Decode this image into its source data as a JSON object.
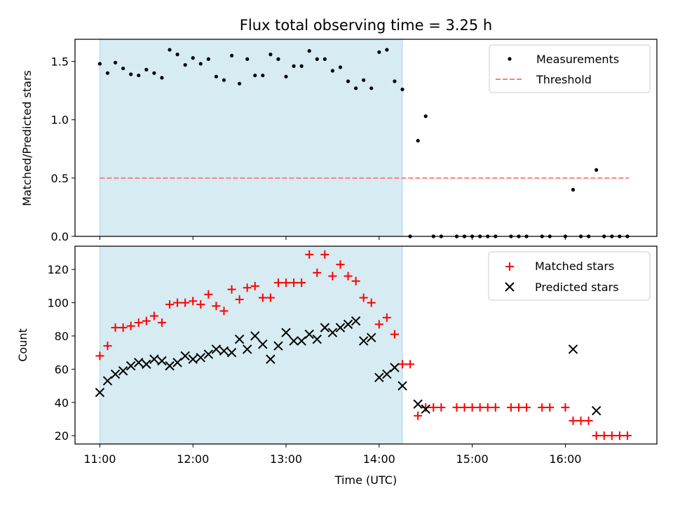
{
  "chart_data": [
    {
      "type": "scatter",
      "title": "Flux total observing time = 3.25 h",
      "ylabel": "Matched/Predicted stars",
      "xlabel": "",
      "xlim": [
        "10:44",
        "16:59"
      ],
      "ylim": [
        0,
        1.69
      ],
      "yticks": [
        "0.0",
        "0.5",
        "1.0",
        "1.5"
      ],
      "shaded_interval": [
        "11:00",
        "14:15"
      ],
      "shaded_color": "#add8e6",
      "legend_position": "upper right",
      "series": [
        {
          "name": "Measurements",
          "marker": "dot",
          "color": "#000000",
          "points": [
            [
              "11:00",
              1.48
            ],
            [
              "11:05",
              1.4
            ],
            [
              "11:10",
              1.49
            ],
            [
              "11:15",
              1.44
            ],
            [
              "11:20",
              1.39
            ],
            [
              "11:25",
              1.38
            ],
            [
              "11:30",
              1.43
            ],
            [
              "11:35",
              1.4
            ],
            [
              "11:40",
              1.36
            ],
            [
              "11:45",
              1.6
            ],
            [
              "11:50",
              1.56
            ],
            [
              "11:55",
              1.47
            ],
            [
              "12:00",
              1.53
            ],
            [
              "12:05",
              1.48
            ],
            [
              "12:10",
              1.52
            ],
            [
              "12:15",
              1.37
            ],
            [
              "12:20",
              1.34
            ],
            [
              "12:25",
              1.55
            ],
            [
              "12:30",
              1.31
            ],
            [
              "12:35",
              1.52
            ],
            [
              "12:40",
              1.38
            ],
            [
              "12:45",
              1.38
            ],
            [
              "12:50",
              1.56
            ],
            [
              "12:55",
              1.52
            ],
            [
              "13:00",
              1.37
            ],
            [
              "13:05",
              1.46
            ],
            [
              "13:10",
              1.46
            ],
            [
              "13:15",
              1.59
            ],
            [
              "13:20",
              1.52
            ],
            [
              "13:25",
              1.52
            ],
            [
              "13:30",
              1.42
            ],
            [
              "13:35",
              1.45
            ],
            [
              "13:40",
              1.33
            ],
            [
              "13:45",
              1.27
            ],
            [
              "13:50",
              1.34
            ],
            [
              "13:55",
              1.27
            ],
            [
              "14:00",
              1.58
            ],
            [
              "14:05",
              1.6
            ],
            [
              "14:10",
              1.33
            ],
            [
              "14:15",
              1.26
            ],
            [
              "14:20",
              0.0
            ],
            [
              "14:25",
              0.82
            ],
            [
              "14:30",
              1.03
            ],
            [
              "14:35",
              0.0
            ],
            [
              "14:40",
              0.0
            ],
            [
              "14:50",
              0.0
            ],
            [
              "14:55",
              0.0
            ],
            [
              "15:00",
              0.0
            ],
            [
              "15:05",
              0.0
            ],
            [
              "15:10",
              0.0
            ],
            [
              "15:15",
              0.0
            ],
            [
              "15:25",
              0.0
            ],
            [
              "15:30",
              0.0
            ],
            [
              "15:35",
              0.0
            ],
            [
              "15:45",
              0.0
            ],
            [
              "15:50",
              0.0
            ],
            [
              "16:00",
              0.0
            ],
            [
              "16:05",
              0.4
            ],
            [
              "16:10",
              0.0
            ],
            [
              "16:15",
              0.0
            ],
            [
              "16:20",
              0.57
            ],
            [
              "16:25",
              0.0
            ],
            [
              "16:30",
              0.0
            ],
            [
              "16:35",
              0.0
            ],
            [
              "16:40",
              0.0
            ]
          ]
        },
        {
          "name": "Threshold",
          "style": "dashed",
          "color": "#ff8080",
          "points": [
            [
              "11:00",
              0.5
            ],
            [
              "16:41",
              0.5
            ]
          ]
        }
      ]
    },
    {
      "type": "scatter",
      "title": "",
      "xlabel": "Time (UTC)",
      "ylabel": "Count",
      "xlim": [
        "10:44",
        "16:59"
      ],
      "ylim": [
        15,
        134
      ],
      "xticks": [
        "11:00",
        "12:00",
        "13:00",
        "14:00",
        "15:00",
        "16:00"
      ],
      "yticks": [
        "20",
        "40",
        "60",
        "80",
        "100",
        "120"
      ],
      "shaded_interval": [
        "11:00",
        "14:15"
      ],
      "shaded_color": "#add8e6",
      "legend_position": "upper right",
      "series": [
        {
          "name": "Matched stars",
          "marker": "plus",
          "color": "#ff0000",
          "points": [
            [
              "11:00",
              68
            ],
            [
              "11:05",
              74
            ],
            [
              "11:10",
              85
            ],
            [
              "11:15",
              85
            ],
            [
              "11:20",
              86
            ],
            [
              "11:25",
              88
            ],
            [
              "11:30",
              89
            ],
            [
              "11:35",
              92
            ],
            [
              "11:40",
              88
            ],
            [
              "11:45",
              99
            ],
            [
              "11:50",
              100
            ],
            [
              "11:55",
              100
            ],
            [
              "12:00",
              101
            ],
            [
              "12:05",
              99
            ],
            [
              "12:10",
              105
            ],
            [
              "12:15",
              98
            ],
            [
              "12:20",
              95
            ],
            [
              "12:25",
              108
            ],
            [
              "12:30",
              102
            ],
            [
              "12:35",
              109
            ],
            [
              "12:40",
              110
            ],
            [
              "12:45",
              103
            ],
            [
              "12:50",
              103
            ],
            [
              "12:55",
              112
            ],
            [
              "13:00",
              112
            ],
            [
              "13:05",
              112
            ],
            [
              "13:10",
              112
            ],
            [
              "13:15",
              129
            ],
            [
              "13:20",
              118
            ],
            [
              "13:25",
              129
            ],
            [
              "13:30",
              116
            ],
            [
              "13:35",
              123
            ],
            [
              "13:40",
              116
            ],
            [
              "13:45",
              113
            ],
            [
              "13:50",
              103
            ],
            [
              "13:55",
              100
            ],
            [
              "14:00",
              87
            ],
            [
              "14:05",
              91
            ],
            [
              "14:10",
              81
            ],
            [
              "14:15",
              63
            ],
            [
              "14:20",
              63
            ],
            [
              "14:25",
              32
            ],
            [
              "14:30",
              37
            ],
            [
              "14:35",
              37
            ],
            [
              "14:40",
              37
            ],
            [
              "14:50",
              37
            ],
            [
              "14:55",
              37
            ],
            [
              "15:00",
              37
            ],
            [
              "15:05",
              37
            ],
            [
              "15:10",
              37
            ],
            [
              "15:15",
              37
            ],
            [
              "15:25",
              37
            ],
            [
              "15:30",
              37
            ],
            [
              "15:35",
              37
            ],
            [
              "15:45",
              37
            ],
            [
              "15:50",
              37
            ],
            [
              "16:00",
              37
            ],
            [
              "16:05",
              29
            ],
            [
              "16:10",
              29
            ],
            [
              "16:15",
              29
            ],
            [
              "16:20",
              20
            ],
            [
              "16:25",
              20
            ],
            [
              "16:30",
              20
            ],
            [
              "16:35",
              20
            ],
            [
              "16:40",
              20
            ]
          ]
        },
        {
          "name": "Predicted stars",
          "marker": "x",
          "color": "#000000",
          "points": [
            [
              "11:00",
              46
            ],
            [
              "11:05",
              53
            ],
            [
              "11:10",
              57
            ],
            [
              "11:15",
              59
            ],
            [
              "11:20",
              62
            ],
            [
              "11:25",
              64
            ],
            [
              "11:30",
              63
            ],
            [
              "11:35",
              66
            ],
            [
              "11:40",
              65
            ],
            [
              "11:45",
              62
            ],
            [
              "11:50",
              64
            ],
            [
              "11:55",
              68
            ],
            [
              "12:00",
              66
            ],
            [
              "12:05",
              67
            ],
            [
              "12:10",
              69
            ],
            [
              "12:15",
              72
            ],
            [
              "12:20",
              71
            ],
            [
              "12:25",
              70
            ],
            [
              "12:30",
              78
            ],
            [
              "12:35",
              72
            ],
            [
              "12:40",
              80
            ],
            [
              "12:45",
              75
            ],
            [
              "12:50",
              66
            ],
            [
              "12:55",
              74
            ],
            [
              "13:00",
              82
            ],
            [
              "13:05",
              77
            ],
            [
              "13:10",
              77
            ],
            [
              "13:15",
              81
            ],
            [
              "13:20",
              78
            ],
            [
              "13:25",
              85
            ],
            [
              "13:30",
              82
            ],
            [
              "13:35",
              85
            ],
            [
              "13:40",
              87
            ],
            [
              "13:45",
              89
            ],
            [
              "13:50",
              77
            ],
            [
              "13:55",
              79
            ],
            [
              "14:00",
              55
            ],
            [
              "14:05",
              57
            ],
            [
              "14:10",
              61
            ],
            [
              "14:15",
              50
            ],
            [
              "14:25",
              39
            ],
            [
              "14:30",
              36
            ],
            [
              "16:05",
              72
            ],
            [
              "16:20",
              35
            ]
          ]
        }
      ]
    }
  ]
}
